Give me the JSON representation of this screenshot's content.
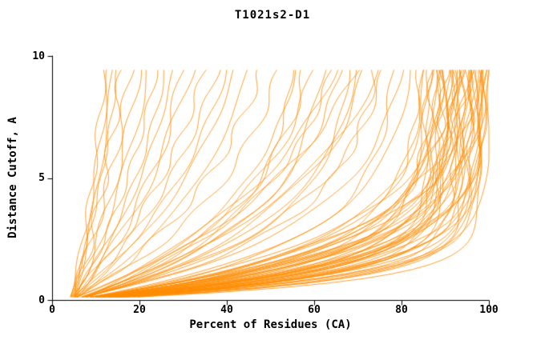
{
  "title": "T1021s2-D1",
  "chart_data": {
    "type": "line",
    "title": "T1021s2-D1",
    "xlabel": "Percent of Residues (CA)",
    "ylabel": "Distance Cutoff, A",
    "xlim": [
      0,
      100
    ],
    "ylim": [
      0,
      10
    ],
    "x_ticks": [
      0,
      20,
      40,
      60,
      80,
      100
    ],
    "y_ticks": [
      0,
      5,
      10
    ],
    "x_tick_labels": [
      "0",
      "20",
      "40",
      "60",
      "80",
      "100"
    ],
    "y_tick_labels": [
      "0",
      "5",
      "10"
    ],
    "grid": false,
    "legend": "none",
    "line_color": "#ff8c00",
    "axis_color": "#000000",
    "background": "#ffffff",
    "curve_param_format": "[percent_at_cutoff_0, percent_at_cutoff_9.5, tau_shape] per model curve; percent(y) = p0 + (p1 - p0) * (1 - exp(-y/tau)) / (1 - exp(-9.5/tau))",
    "curves": [
      [
        4,
        100,
        1.0
      ],
      [
        5,
        99,
        1.2
      ],
      [
        4,
        98,
        0.9
      ],
      [
        6,
        97,
        1.5
      ],
      [
        5,
        96,
        1.1
      ],
      [
        4,
        95,
        0.8
      ],
      [
        6,
        94,
        1.4
      ],
      [
        5,
        93,
        1.0
      ],
      [
        4,
        92,
        1.6
      ],
      [
        6,
        91,
        1.2
      ],
      [
        5,
        90,
        0.9
      ],
      [
        4,
        89,
        1.3
      ],
      [
        6,
        88,
        1.1
      ],
      [
        5,
        87,
        1.7
      ],
      [
        4,
        86,
        1.0
      ],
      [
        5,
        85,
        1.4
      ],
      [
        6,
        99,
        2.0
      ],
      [
        4,
        97,
        1.8
      ],
      [
        5,
        95,
        2.1
      ],
      [
        6,
        93,
        1.9
      ],
      [
        4,
        91,
        2.2
      ],
      [
        5,
        98,
        0.7
      ],
      [
        6,
        96,
        0.8
      ],
      [
        4,
        94,
        0.75
      ],
      [
        5,
        92,
        0.85
      ],
      [
        6,
        90,
        1.05
      ],
      [
        4,
        88,
        1.25
      ],
      [
        5,
        86,
        1.45
      ],
      [
        4,
        100,
        1.6
      ],
      [
        5,
        99,
        1.35
      ],
      [
        6,
        98,
        1.15
      ],
      [
        4,
        96,
        1.55
      ],
      [
        5,
        94,
        1.3
      ],
      [
        6,
        92,
        1.5
      ],
      [
        4,
        90,
        1.7
      ],
      [
        5,
        88,
        1.9
      ],
      [
        6,
        87,
        2.3
      ],
      [
        4,
        85,
        2.0
      ],
      [
        5,
        84,
        1.8
      ],
      [
        6,
        89,
        0.95
      ],
      [
        5,
        97,
        1.05
      ],
      [
        4,
        95,
        1.25
      ],
      [
        6,
        93,
        1.45
      ],
      [
        5,
        91,
        1.65
      ],
      [
        4,
        89,
        1.85
      ],
      [
        6,
        99,
        1.5
      ],
      [
        5,
        100,
        2.2
      ],
      [
        4,
        98,
        2.4
      ],
      [
        6,
        96,
        2.6
      ],
      [
        5,
        94,
        2.8
      ],
      [
        5,
        82,
        2.5
      ],
      [
        4,
        80,
        3.0
      ],
      [
        6,
        78,
        2.2
      ],
      [
        5,
        76,
        3.5
      ],
      [
        4,
        74,
        2.8
      ],
      [
        6,
        72,
        4.0
      ],
      [
        5,
        70,
        3.2
      ],
      [
        4,
        68,
        2.6
      ],
      [
        6,
        66,
        3.8
      ],
      [
        5,
        64,
        4.2
      ],
      [
        4,
        62,
        3.0
      ],
      [
        6,
        60,
        4.5
      ],
      [
        5,
        58,
        3.6
      ],
      [
        4,
        56,
        4.0
      ],
      [
        6,
        55,
        2.9
      ],
      [
        5,
        75,
        5.0
      ],
      [
        4,
        65,
        5.5
      ],
      [
        6,
        70,
        6.0
      ],
      [
        4,
        52,
        5.0
      ],
      [
        5,
        48,
        6.0
      ],
      [
        4,
        45,
        5.5
      ],
      [
        5,
        42,
        7.0
      ],
      [
        4,
        40,
        6.5
      ],
      [
        5,
        38,
        8.0
      ],
      [
        4,
        35,
        7.5
      ],
      [
        5,
        32,
        9.0
      ],
      [
        4,
        30,
        6.0
      ],
      [
        5,
        28,
        8.5
      ],
      [
        4,
        26,
        7.0
      ],
      [
        5,
        24,
        9.5
      ],
      [
        4,
        22,
        8.0
      ],
      [
        5,
        20,
        10.0
      ],
      [
        4,
        18,
        9.0
      ],
      [
        5,
        16,
        10.5
      ],
      [
        4,
        15,
        8.5
      ],
      [
        5,
        14,
        11.0
      ],
      [
        4,
        13,
        9.5
      ],
      [
        5,
        12,
        12.0
      ]
    ]
  }
}
